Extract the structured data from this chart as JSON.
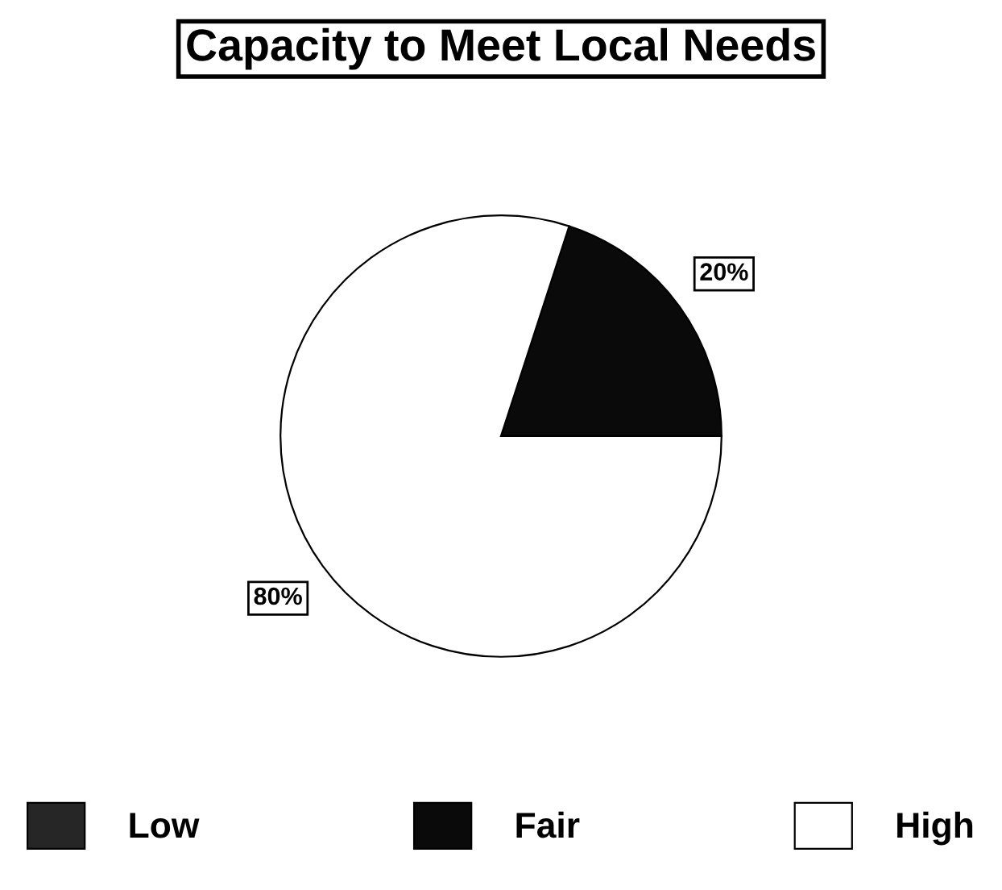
{
  "chart_data": {
    "type": "pie",
    "title": "Capacity to Meet Local Needs",
    "categories": [
      "Low",
      "Fair",
      "High"
    ],
    "values": [
      0,
      20,
      80
    ],
    "value_labels": [
      null,
      "20%",
      "80%"
    ],
    "colors": [
      "#262626",
      "#0a0a0a",
      "#ffffff"
    ],
    "legend": "bottom"
  }
}
